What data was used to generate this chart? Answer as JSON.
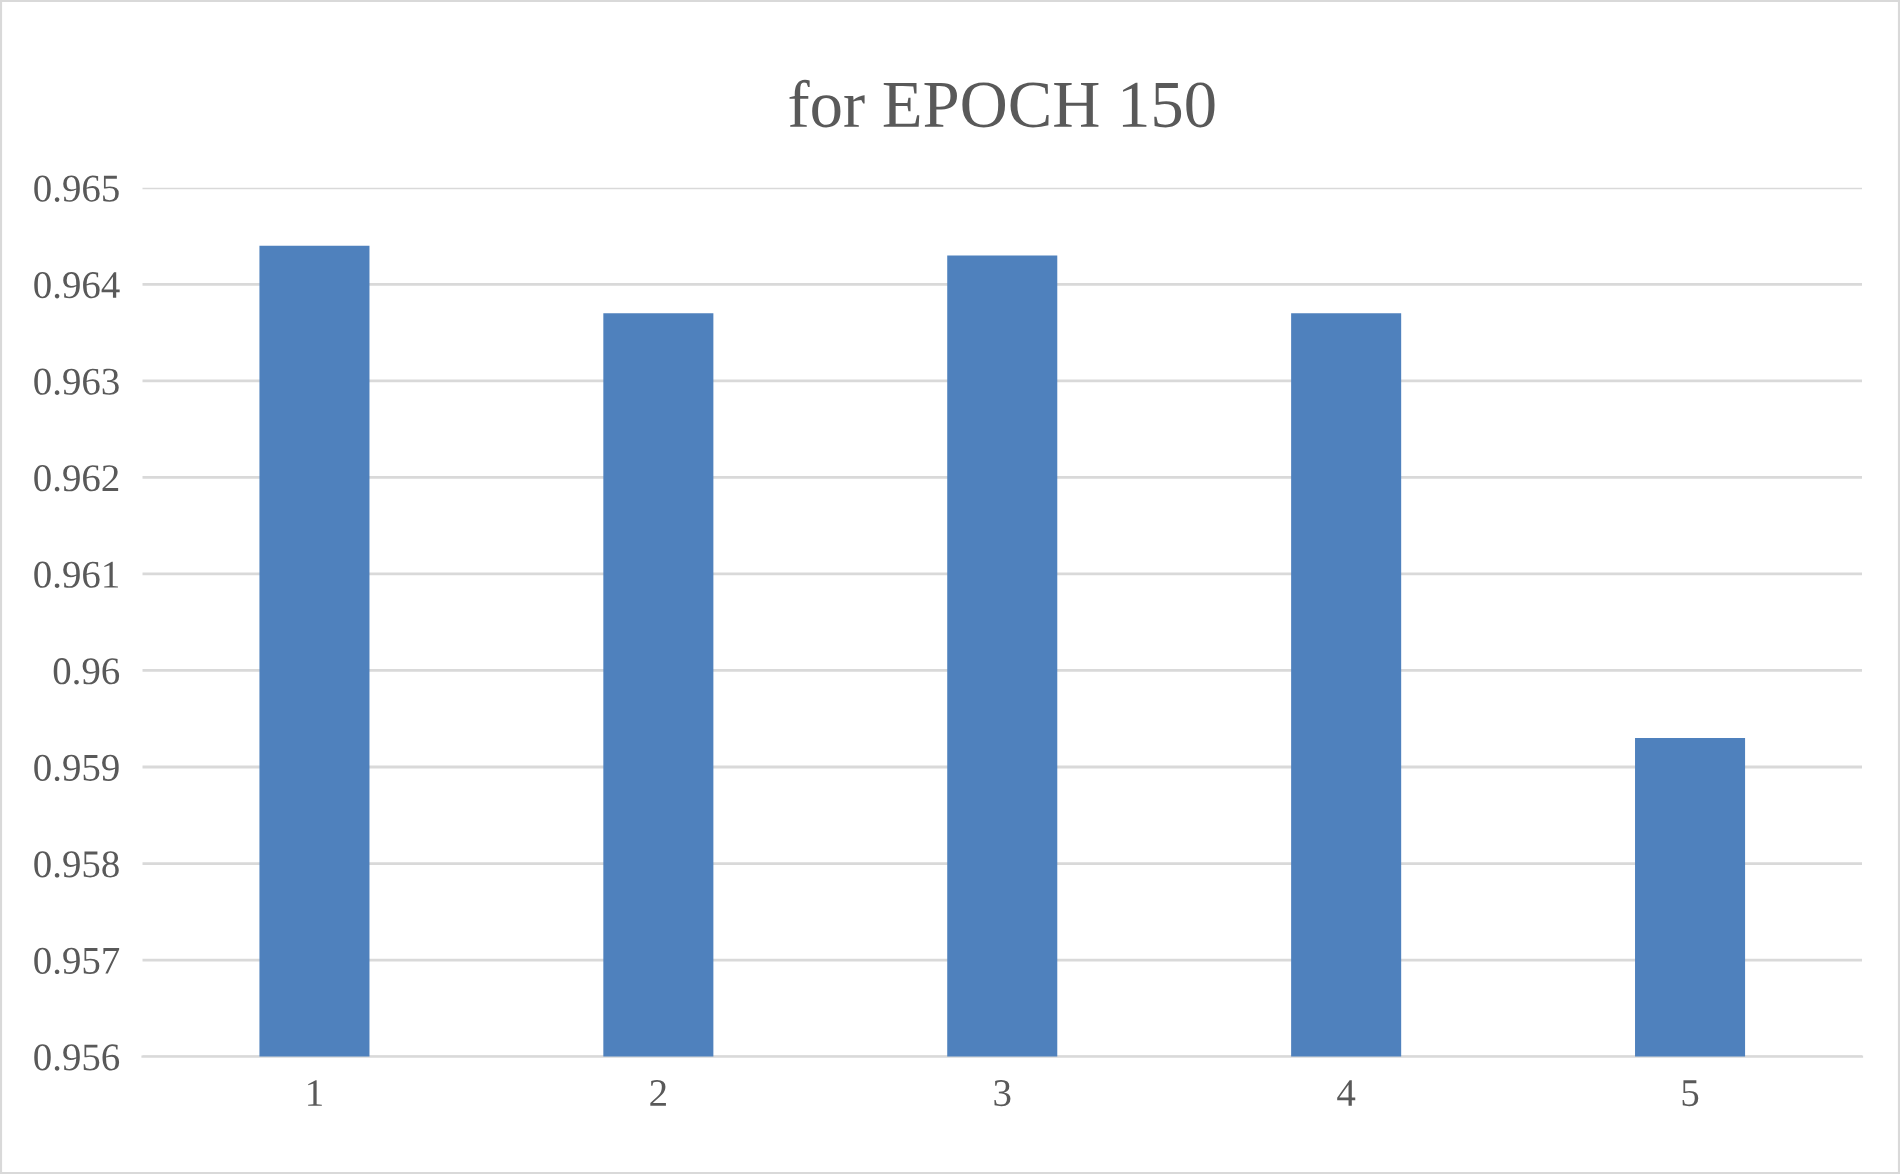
{
  "chart_data": {
    "type": "bar",
    "title": "for EPOCH 150",
    "categories": [
      "1",
      "2",
      "3",
      "4",
      "5"
    ],
    "values": [
      0.9644,
      0.9637,
      0.9643,
      0.9637,
      0.9593
    ],
    "color": "#4f81bd",
    "ylim": [
      0.956,
      0.965
    ],
    "yticks": [
      0.956,
      0.957,
      0.958,
      0.959,
      0.96,
      0.961,
      0.962,
      0.963,
      0.964,
      0.965
    ],
    "grid": "y",
    "legend": false
  }
}
